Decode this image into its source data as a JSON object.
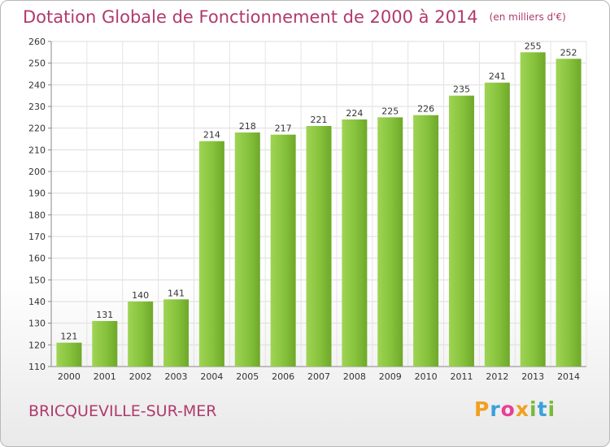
{
  "page": {
    "title": "Dotation Globale de Fonctionnement de 2000 à 2014",
    "unit": "(en milliers d'€)",
    "commune": "BRICQUEVILLE-SUR-MER",
    "logo": [
      "P",
      "r",
      "o",
      "x",
      "i",
      "t",
      "i"
    ],
    "logo_colors": [
      "#f0a020",
      "#3aa0dd",
      "#e83f96",
      "#f0a020",
      "#7ab93a",
      "#3aa0dd",
      "#7ab93a"
    ],
    "title_color": "#b03a6c",
    "bar_color": "#8cc63f"
  },
  "chart_data": {
    "type": "bar",
    "title": "Dotation Globale de Fonctionnement de 2000 à 2014",
    "subtitle": "(en milliers d'€)",
    "xlabel": "",
    "ylabel": "",
    "categories": [
      "2000",
      "2001",
      "2002",
      "2003",
      "2004",
      "2005",
      "2006",
      "2007",
      "2008",
      "2009",
      "2010",
      "2011",
      "2012",
      "2013",
      "2014"
    ],
    "values": [
      121,
      131,
      140,
      141,
      214,
      218,
      217,
      221,
      224,
      225,
      226,
      235,
      241,
      255,
      252
    ],
    "ylim": [
      110,
      260
    ],
    "yticks": [
      110,
      120,
      130,
      140,
      150,
      160,
      170,
      180,
      190,
      200,
      210,
      220,
      230,
      240,
      250,
      260
    ],
    "grid": true,
    "legend": "none"
  }
}
